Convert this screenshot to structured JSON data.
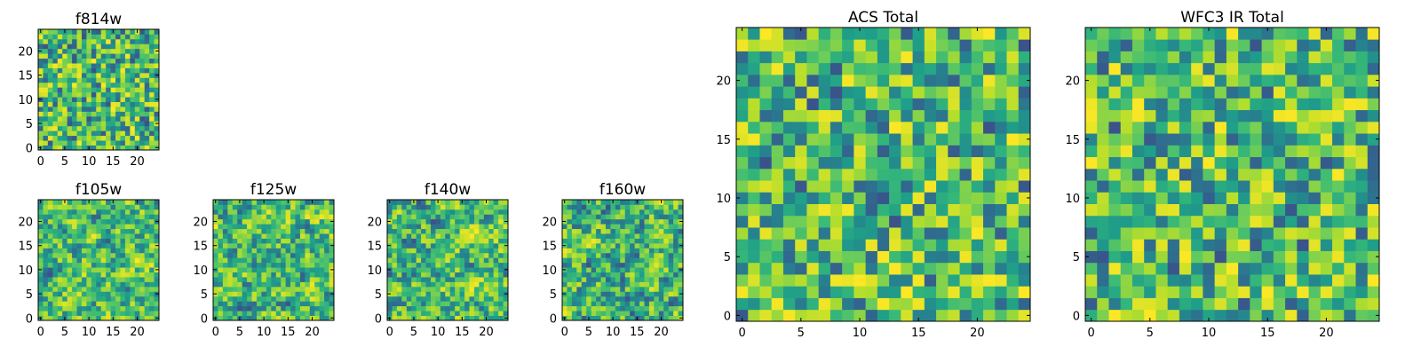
{
  "colors": {
    "colormap": "viridis",
    "axes_frame": "#000000",
    "background": "#ffffff"
  },
  "chart_data": [
    {
      "id": "f814w",
      "type": "heatmap",
      "title": "f814w",
      "grid_size": 25,
      "xlim": [
        -0.5,
        24.5
      ],
      "ylim": [
        -0.5,
        24.5
      ],
      "xticks": [
        0,
        5,
        10,
        15,
        20
      ],
      "yticks": [
        0,
        5,
        10,
        15,
        20
      ],
      "texture": "fine_noise",
      "seed": 814
    },
    {
      "id": "f105w",
      "type": "heatmap",
      "title": "f105w",
      "grid_size": 25,
      "xlim": [
        -0.5,
        24.5
      ],
      "ylim": [
        -0.5,
        24.5
      ],
      "xticks": [
        0,
        5,
        10,
        15,
        20
      ],
      "yticks": [
        0,
        5,
        10,
        15,
        20
      ],
      "texture": "smooth_noise",
      "seed": 105
    },
    {
      "id": "f125w",
      "type": "heatmap",
      "title": "f125w",
      "grid_size": 25,
      "xlim": [
        -0.5,
        24.5
      ],
      "ylim": [
        -0.5,
        24.5
      ],
      "xticks": [
        0,
        5,
        10,
        15,
        20
      ],
      "yticks": [
        0,
        5,
        10,
        15,
        20
      ],
      "texture": "smooth_noise",
      "seed": 125
    },
    {
      "id": "f140w",
      "type": "heatmap",
      "title": "f140w",
      "grid_size": 25,
      "xlim": [
        -0.5,
        24.5
      ],
      "ylim": [
        -0.5,
        24.5
      ],
      "xticks": [
        0,
        5,
        10,
        15,
        20
      ],
      "yticks": [
        0,
        5,
        10,
        15,
        20
      ],
      "texture": "smooth_noise",
      "seed": 140
    },
    {
      "id": "f160w",
      "type": "heatmap",
      "title": "f160w",
      "grid_size": 25,
      "xlim": [
        -0.5,
        24.5
      ],
      "ylim": [
        -0.5,
        24.5
      ],
      "xticks": [
        0,
        5,
        10,
        15,
        20
      ],
      "yticks": [
        0,
        5,
        10,
        15,
        20
      ],
      "texture": "smooth_noise",
      "seed": 160
    },
    {
      "id": "acs-total",
      "type": "heatmap",
      "title": "ACS Total",
      "grid_size": 25,
      "xlim": [
        -0.5,
        24.5
      ],
      "ylim": [
        -0.5,
        24.5
      ],
      "xticks": [
        0,
        5,
        10,
        15,
        20
      ],
      "yticks": [
        0,
        5,
        10,
        15,
        20
      ],
      "texture": "fine_noise",
      "seed": 2001
    },
    {
      "id": "wfc3-ir-total",
      "type": "heatmap",
      "title": "WFC3 IR Total",
      "grid_size": 25,
      "xlim": [
        -0.5,
        24.5
      ],
      "ylim": [
        -0.5,
        24.5
      ],
      "xticks": [
        0,
        5,
        10,
        15,
        20
      ],
      "yticks": [
        0,
        5,
        10,
        15,
        20
      ],
      "texture": "fine_noise",
      "seed": 3003
    }
  ]
}
